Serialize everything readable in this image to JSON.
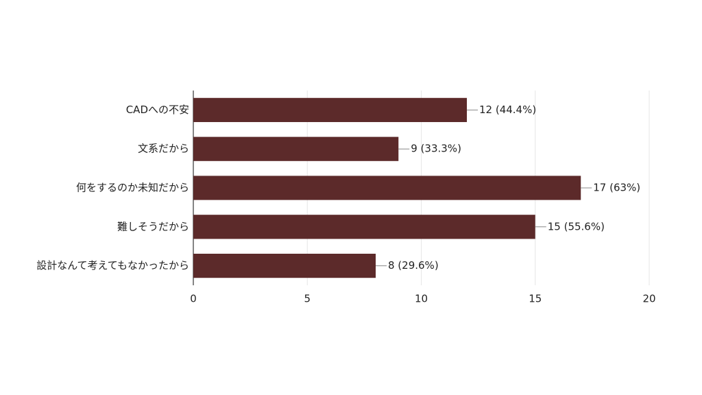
{
  "chart_data": {
    "type": "bar",
    "orientation": "horizontal",
    "categories": [
      "CADへの不安",
      "文系だから",
      "何をするのか未知だから",
      "難しそうだから",
      "設計なんて考えてもなかったから"
    ],
    "values": [
      12,
      9,
      17,
      15,
      8
    ],
    "value_labels": [
      "12 (44.4%)",
      "9 (33.3%)",
      "17 (63%)",
      "15 (55.6%)",
      "8 (29.6%)"
    ],
    "color": "#5c2a2a",
    "xlim": [
      0,
      20
    ],
    "xticks": [
      0,
      5,
      10,
      15,
      20
    ],
    "grid": true
  }
}
